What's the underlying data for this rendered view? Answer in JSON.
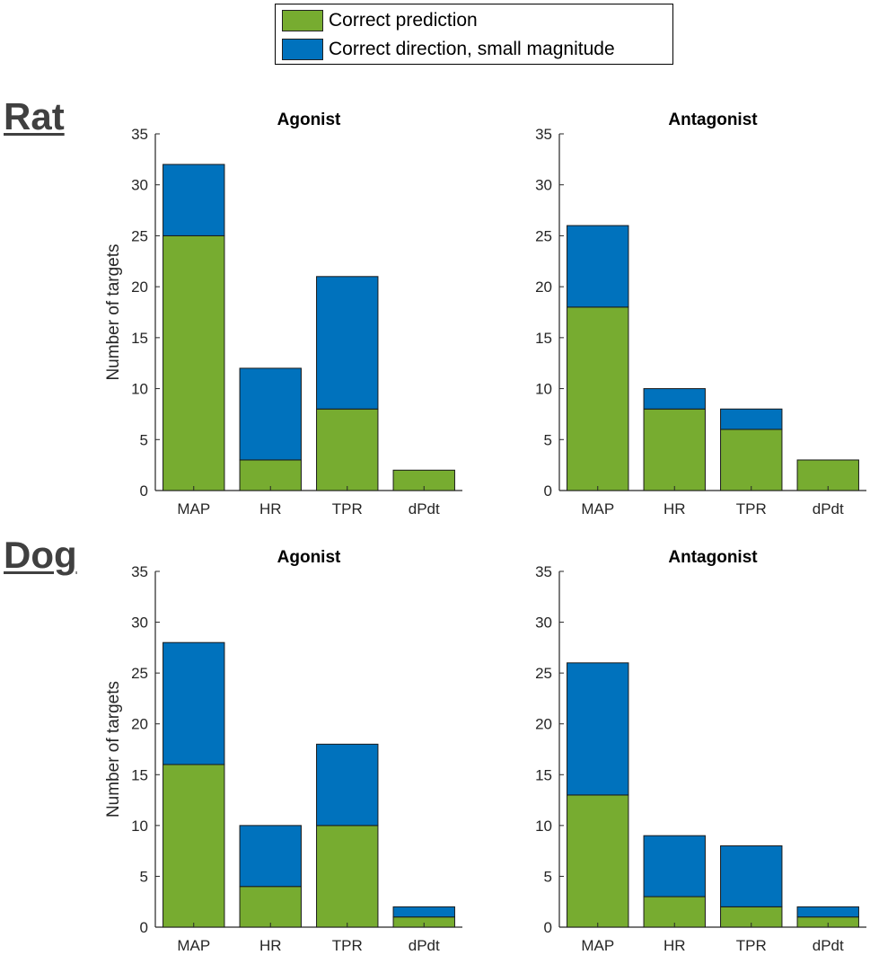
{
  "legend": {
    "items": [
      {
        "label": "Correct prediction",
        "color": "#77AC30"
      },
      {
        "label": "Correct direction, small magnitude",
        "color": "#0072BD"
      }
    ]
  },
  "species": {
    "rat": "Rat",
    "dog": "Dog"
  },
  "chart_data": [
    {
      "id": "rat-agonist",
      "type": "bar",
      "stacked": true,
      "title": "Agonist",
      "ylabel": "Number of targets",
      "xlabel": "",
      "categories": [
        "MAP",
        "HR",
        "TPR",
        "dPdt"
      ],
      "ylim": [
        0,
        35
      ],
      "yticks": [
        0,
        5,
        10,
        15,
        20,
        25,
        30,
        35
      ],
      "series": [
        {
          "name": "Correct prediction",
          "color": "#77AC30",
          "values": [
            25,
            3,
            8,
            2
          ]
        },
        {
          "name": "Correct direction, small magnitude",
          "color": "#0072BD",
          "values": [
            7,
            9,
            13,
            0
          ]
        }
      ]
    },
    {
      "id": "rat-antagonist",
      "type": "bar",
      "stacked": true,
      "title": "Antagonist",
      "ylabel": "",
      "xlabel": "",
      "categories": [
        "MAP",
        "HR",
        "TPR",
        "dPdt"
      ],
      "ylim": [
        0,
        35
      ],
      "yticks": [
        0,
        5,
        10,
        15,
        20,
        25,
        30,
        35
      ],
      "series": [
        {
          "name": "Correct prediction",
          "color": "#77AC30",
          "values": [
            18,
            8,
            6,
            3
          ]
        },
        {
          "name": "Correct direction, small magnitude",
          "color": "#0072BD",
          "values": [
            8,
            2,
            2,
            0
          ]
        }
      ]
    },
    {
      "id": "dog-agonist",
      "type": "bar",
      "stacked": true,
      "title": "Agonist",
      "ylabel": "Number of targets",
      "xlabel": "",
      "categories": [
        "MAP",
        "HR",
        "TPR",
        "dPdt"
      ],
      "ylim": [
        0,
        35
      ],
      "yticks": [
        0,
        5,
        10,
        15,
        20,
        25,
        30,
        35
      ],
      "series": [
        {
          "name": "Correct prediction",
          "color": "#77AC30",
          "values": [
            16,
            4,
            10,
            1
          ]
        },
        {
          "name": "Correct direction, small magnitude",
          "color": "#0072BD",
          "values": [
            12,
            6,
            8,
            1
          ]
        }
      ]
    },
    {
      "id": "dog-antagonist",
      "type": "bar",
      "stacked": true,
      "title": "Antagonist",
      "ylabel": "",
      "xlabel": "",
      "categories": [
        "MAP",
        "HR",
        "TPR",
        "dPdt"
      ],
      "ylim": [
        0,
        35
      ],
      "yticks": [
        0,
        5,
        10,
        15,
        20,
        25,
        30,
        35
      ],
      "series": [
        {
          "name": "Correct prediction",
          "color": "#77AC30",
          "values": [
            13,
            3,
            2,
            1
          ]
        },
        {
          "name": "Correct direction, small magnitude",
          "color": "#0072BD",
          "values": [
            13,
            6,
            6,
            1
          ]
        }
      ]
    }
  ]
}
